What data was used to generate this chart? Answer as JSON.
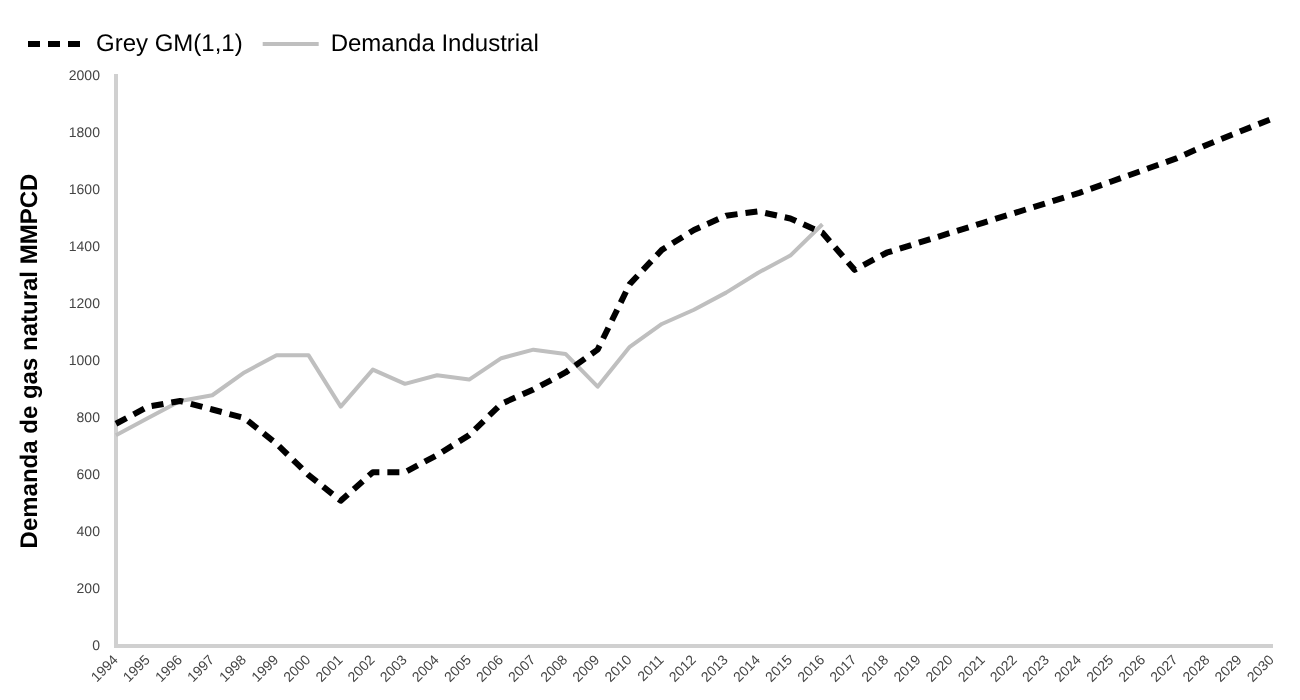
{
  "chart_data": {
    "type": "line",
    "ylabel": "Demanda de gas natural MMPCD",
    "categories": [
      "1994",
      "1995",
      "1996",
      "1997",
      "1998",
      "1999",
      "2000",
      "2001",
      "2002",
      "2003",
      "2004",
      "2005",
      "2006",
      "2007",
      "2008",
      "2009",
      "2010",
      "2011",
      "2012",
      "2013",
      "2014",
      "2015",
      "2016",
      "2017",
      "2018",
      "2019",
      "2020",
      "2021",
      "2022",
      "2023",
      "2024",
      "2025",
      "2026",
      "2027",
      "2028",
      "2029",
      "2030"
    ],
    "series": [
      {
        "name": "Grey GM(1,1)",
        "color": "#000000",
        "line_style": "dashed",
        "values": [
          780,
          840,
          860,
          830,
          800,
          710,
          600,
          510,
          610,
          610,
          670,
          740,
          850,
          900,
          960,
          1040,
          1270,
          1390,
          1460,
          1510,
          1525,
          1500,
          1450,
          1320,
          1380,
          1415,
          1450,
          1485,
          1520,
          1555,
          1590,
          1630,
          1670,
          1710,
          1760,
          1805,
          1850
        ]
      },
      {
        "name": "Demanda Industrial",
        "color": "#bfbfbf",
        "line_style": "solid",
        "values": [
          740,
          800,
          860,
          880,
          960,
          1020,
          1020,
          840,
          970,
          920,
          950,
          935,
          1010,
          1040,
          1025,
          910,
          1050,
          1130,
          1180,
          1240,
          1310,
          1370,
          1480,
          null,
          null,
          null,
          null,
          null,
          null,
          null,
          null,
          null,
          null,
          null,
          null,
          null,
          null
        ]
      }
    ],
    "ylim": [
      0,
      2000
    ],
    "yticks": [
      0,
      200,
      400,
      600,
      800,
      1000,
      1200,
      1400,
      1600,
      1800,
      2000
    ],
    "grid": false,
    "legend": "top left",
    "marker": "none"
  }
}
